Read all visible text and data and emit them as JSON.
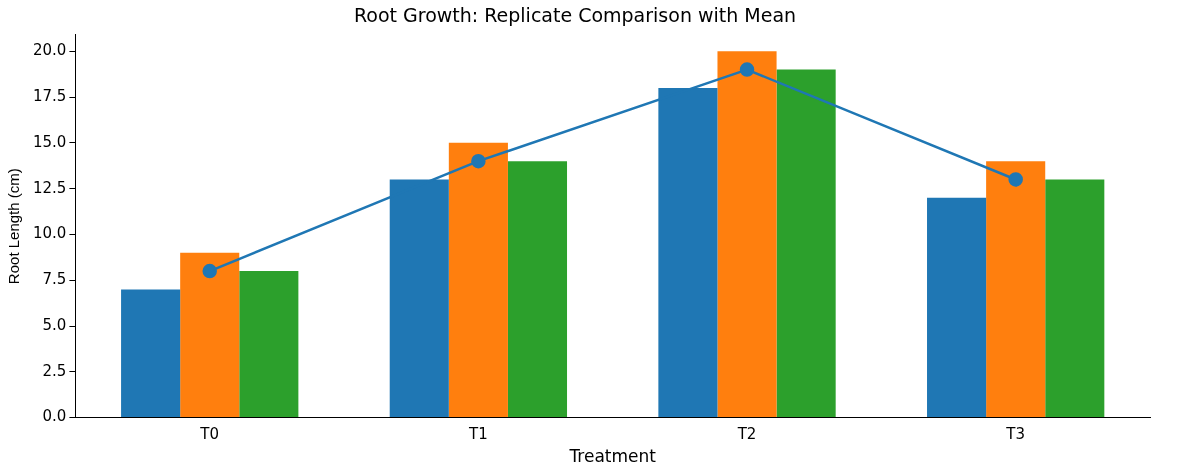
{
  "chart_data": {
    "type": "bar",
    "title": "Root Growth: Replicate Comparison with Mean",
    "xlabel": "Treatment",
    "ylabel": "Root Length (cm)",
    "categories": [
      "T0",
      "T1",
      "T2",
      "T3"
    ],
    "series": [
      {
        "color": "#1f77b4",
        "values": [
          7,
          13,
          18,
          12
        ]
      },
      {
        "color": "#ff7f0e",
        "values": [
          9,
          15,
          20,
          14
        ]
      },
      {
        "color": "#2ca02c",
        "values": [
          8,
          14,
          19,
          13
        ]
      },
      {
        "type": "line",
        "color": "#1f77b4",
        "values": [
          8,
          14,
          19,
          13
        ],
        "marker": "circle"
      }
    ],
    "ylim": [
      0,
      20.9
    ],
    "yticks": [
      {
        "value": 0,
        "label": "0.0"
      },
      2.5,
      {
        "value": 5,
        "label": "5.0"
      },
      7.5,
      {
        "value": 10,
        "label": "10.0"
      },
      12.5,
      {
        "value": 15,
        "label": "15.0"
      },
      17.5,
      {
        "value": 20,
        "label": "20.0"
      }
    ],
    "grid": false,
    "legend": false
  }
}
